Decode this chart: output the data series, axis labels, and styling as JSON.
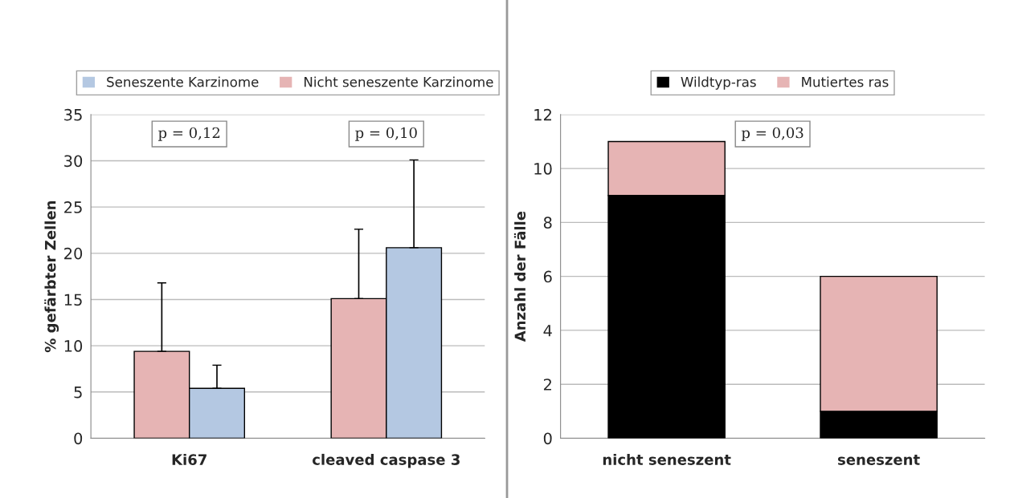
{
  "chart_data": [
    {
      "type": "bar",
      "ylabel": "% gefärbter Zellen",
      "categories": [
        "Ki67",
        "cleaved caspase 3"
      ],
      "series": [
        {
          "name": "Nicht seneszente Karzinome",
          "color": "#e6b4b4",
          "values": [
            9.4,
            15.1
          ],
          "errors": [
            [
              9.4,
              16.8
            ],
            [
              15.1,
              22.6
            ]
          ]
        },
        {
          "name": "Seneszente Karzinome",
          "color": "#b4c8e2",
          "values": [
            5.4,
            20.6
          ],
          "errors": [
            [
              5.4,
              7.9
            ],
            [
              20.6,
              30.1
            ]
          ]
        }
      ],
      "ylim": [
        0,
        35
      ],
      "yticks": [
        0,
        5,
        10,
        15,
        20,
        25,
        30,
        35
      ],
      "grid": "y",
      "legend": "top",
      "annotations": [
        "p = 0,12",
        "p = 0,10"
      ]
    },
    {
      "type": "bar",
      "stacked": true,
      "ylabel": "Anzahl der Fälle",
      "categories": [
        "nicht seneszent",
        "seneszent"
      ],
      "series": [
        {
          "name": "Wildtyp-ras",
          "color": "#000000",
          "values": [
            9,
            1
          ]
        },
        {
          "name": "Mutiertes ras",
          "color": "#e6b4b4",
          "values": [
            2,
            5
          ]
        }
      ],
      "ylim": [
        0,
        12
      ],
      "yticks": [
        0,
        2,
        4,
        6,
        8,
        10,
        12
      ],
      "grid": "y",
      "legend": "top",
      "annotations": [
        "p = 0,03"
      ]
    }
  ]
}
